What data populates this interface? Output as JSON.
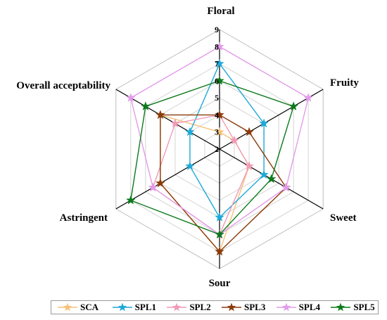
{
  "chart_data": {
    "type": "radar",
    "title": "",
    "axes": [
      "Floral",
      "Fruity",
      "Sweet",
      "Sour",
      "Astringent",
      "Overall acceptability"
    ],
    "ticks": [
      2,
      3,
      4,
      5,
      6,
      7,
      8,
      9
    ],
    "range": [
      2,
      9
    ],
    "grid": true,
    "legend_position": "bottom",
    "series": [
      {
        "name": "SCA",
        "color": "#F5C27A",
        "values": [
          3.0,
          3.0,
          4.0,
          8.0,
          6.0,
          6.0
        ]
      },
      {
        "name": "SPL1",
        "color": "#1FA9D9",
        "values": [
          7.0,
          5.0,
          5.0,
          6.0,
          4.0,
          4.0
        ]
      },
      {
        "name": "SPL2",
        "color": "#F19AB6",
        "values": [
          4.0,
          3.0,
          4.0,
          7.0,
          6.5,
          5.0
        ]
      },
      {
        "name": "SPL3",
        "color": "#8B3A0A",
        "values": [
          4.0,
          4.0,
          6.5,
          8.0,
          6.0,
          6.0
        ]
      },
      {
        "name": "SPL4",
        "color": "#E29BEA",
        "values": [
          8.0,
          8.0,
          6.5,
          7.0,
          6.5,
          8.0
        ]
      },
      {
        "name": "SPL5",
        "color": "#0B7A1B",
        "values": [
          6.0,
          7.0,
          5.5,
          7.0,
          8.0,
          7.0
        ]
      }
    ]
  }
}
